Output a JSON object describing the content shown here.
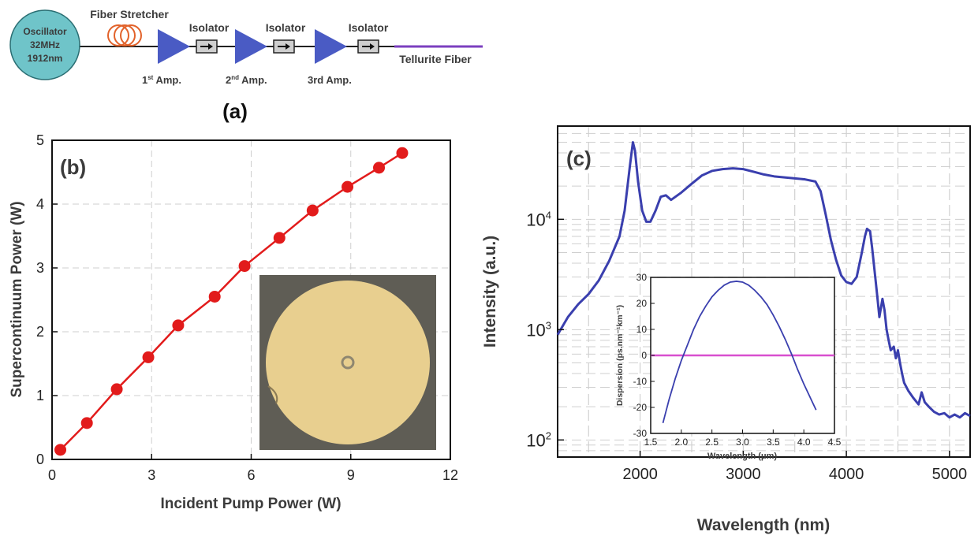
{
  "schematic": {
    "oscillator": [
      "Oscillator",
      "32MHz",
      "1912nm"
    ],
    "stretcher_label": "Fiber Stretcher",
    "isolator_label": "Isolator",
    "amps": [
      {
        "main": "1",
        "sup": "st",
        "rest": " Amp."
      },
      {
        "main": "2",
        "sup": "nd",
        "rest": " Amp."
      },
      {
        "main": "3rd Amp.",
        "sup": "",
        "rest": ""
      }
    ],
    "fiber_label": "Tellurite Fiber",
    "panel_label": "(a)"
  },
  "colors": {
    "oscillator_fill": "#6fc4c9",
    "amp_fill": "#4a5bc4",
    "stretcher": "#e2622a",
    "fiber": "#7b3fbf",
    "power_curve": "#e21b1b",
    "spectrum": "#3a3fae",
    "zero_line": "#d84fcf",
    "fiber_face": "#e8cf8f",
    "fiber_background": "#5f5d55"
  },
  "chart_data": [
    {
      "type": "line",
      "panel_label": "(b)",
      "xlabel": "Incident Pump Power (W)",
      "ylabel": "Supercontinuum Power (W)",
      "xlim": [
        0,
        12
      ],
      "ylim": [
        0,
        5
      ],
      "xticks": [
        "0",
        "3",
        "6",
        "9",
        "12"
      ],
      "yticks": [
        "0",
        "1",
        "2",
        "3",
        "4",
        "5"
      ],
      "grid": true,
      "series": [
        {
          "x": [
            0.25,
            1.05,
            1.95,
            2.9,
            3.8,
            4.9,
            5.8,
            6.85,
            7.85,
            8.9,
            9.85,
            10.55
          ],
          "y": [
            0.15,
            0.57,
            1.1,
            1.6,
            2.1,
            2.55,
            3.03,
            3.47,
            3.9,
            4.27,
            4.57,
            4.8
          ]
        }
      ],
      "inset": {
        "type": "image",
        "description_visible": "fiber cross-section photo"
      }
    },
    {
      "type": "line",
      "panel_label": "(c)",
      "xlabel": "Wavelength (nm)",
      "ylabel": "Intensity (a.u.)",
      "xlim": [
        1200,
        5200
      ],
      "ylim": [
        70,
        70000
      ],
      "yscale": "log",
      "xticks": [
        "2000",
        "3000",
        "4000",
        "5000"
      ],
      "yticks": [
        {
          "base": "10",
          "exp": "2",
          "value": 100
        },
        {
          "base": "10",
          "exp": "3",
          "value": 1000
        },
        {
          "base": "10",
          "exp": "4",
          "value": 10000
        }
      ],
      "grid": true,
      "series": [
        {
          "x": [
            1200,
            1300,
            1400,
            1500,
            1600,
            1700,
            1800,
            1850,
            1900,
            1930,
            1950,
            1980,
            2020,
            2060,
            2100,
            2150,
            2200,
            2250,
            2300,
            2400,
            2500,
            2600,
            2700,
            2800,
            2900,
            3000,
            3100,
            3200,
            3300,
            3400,
            3500,
            3600,
            3700,
            3750,
            3800,
            3850,
            3900,
            3950,
            4000,
            4050,
            4100,
            4150,
            4180,
            4200,
            4230,
            4250,
            4280,
            4300,
            4320,
            4350,
            4370,
            4390,
            4410,
            4430,
            4460,
            4480,
            4500,
            4520,
            4540,
            4560,
            4600,
            4650,
            4700,
            4730,
            4760,
            4800,
            4850,
            4900,
            4950,
            5000,
            5050,
            5100,
            5150,
            5200
          ],
          "y": [
            900,
            1300,
            1700,
            2100,
            2800,
            4200,
            7000,
            12000,
            30000,
            50000,
            42000,
            22000,
            12000,
            9500,
            9500,
            12000,
            16000,
            16500,
            15000,
            17500,
            21000,
            25000,
            27500,
            28500,
            29000,
            28500,
            27000,
            25500,
            24500,
            24000,
            23500,
            23000,
            22000,
            18000,
            11000,
            6500,
            4300,
            3100,
            2700,
            2600,
            3000,
            5000,
            7000,
            8200,
            7800,
            5500,
            3000,
            2000,
            1300,
            1900,
            1500,
            1000,
            800,
            650,
            700,
            550,
            650,
            500,
            400,
            330,
            280,
            240,
            210,
            270,
            220,
            200,
            180,
            170,
            175,
            160,
            170,
            160,
            175,
            165
          ]
        }
      ],
      "inset": {
        "type": "line",
        "xlabel": "Wavelength (μm)",
        "ylabel": "Dispersion (ps.nm⁻¹km⁻¹)",
        "xlim": [
          1.5,
          4.5
        ],
        "ylim": [
          -30,
          30
        ],
        "xticks": [
          "1.5",
          "2.0",
          "2.5",
          "3.0",
          "3.5",
          "4.0",
          "4.5"
        ],
        "yticks": [
          "-30",
          "-20",
          "-10",
          "0",
          "10",
          "20",
          "30"
        ],
        "series": [
          {
            "x": [
              1.7,
              1.8,
              1.9,
              2.0,
              2.1,
              2.2,
              2.3,
              2.4,
              2.5,
              2.6,
              2.7,
              2.8,
              2.9,
              3.0,
              3.1,
              3.2,
              3.3,
              3.4,
              3.5,
              3.6,
              3.7,
              3.8,
              3.9,
              4.0,
              4.1,
              4.2
            ],
            "y": [
              -26,
              -17,
              -9,
              -2,
              4,
              10,
              15,
              19,
              22.5,
              25,
              27,
              28.2,
              28.5,
              28.2,
              27,
              25,
              22.5,
              19.5,
              15.5,
              11,
              6,
              0.5,
              -5.5,
              -11,
              -16,
              -21
            ]
          },
          {
            "name": "zero",
            "x": [
              1.5,
              4.5
            ],
            "y": [
              0,
              0
            ]
          }
        ]
      }
    }
  ]
}
